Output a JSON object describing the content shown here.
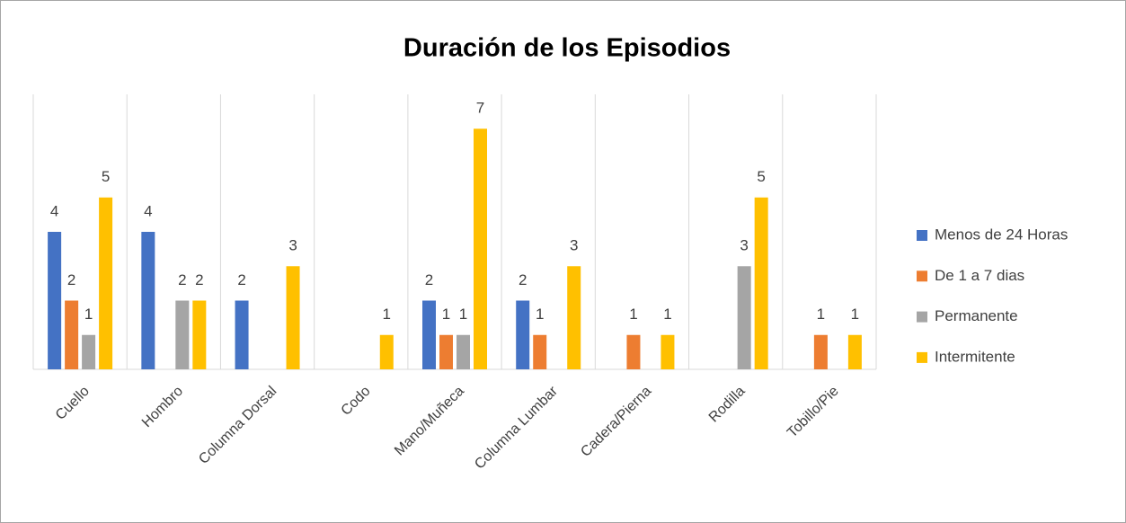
{
  "chart_data": {
    "type": "bar",
    "title": "Duración de los Episodios",
    "categories": [
      "Cuello",
      "Hombro",
      "Columna Dorsal",
      "Codo",
      "Mano/Muñeca",
      "Columna Lumbar",
      "Cadera/Pierna",
      "Rodilla",
      "Tobillo/Pie"
    ],
    "series": [
      {
        "name": "Menos de 24 Horas",
        "color": "#4472c4",
        "values": [
          4,
          4,
          2,
          0,
          2,
          2,
          0,
          0,
          0
        ]
      },
      {
        "name": "De 1 a 7 dias",
        "color": "#ed7d31",
        "values": [
          2,
          0,
          0,
          0,
          1,
          1,
          1,
          0,
          1
        ]
      },
      {
        "name": "Permanente",
        "color": "#a5a5a5",
        "values": [
          1,
          2,
          0,
          0,
          1,
          0,
          0,
          3,
          0
        ]
      },
      {
        "name": "Intermitente",
        "color": "#ffc000",
        "values": [
          5,
          2,
          3,
          1,
          7,
          3,
          1,
          5,
          1
        ]
      }
    ],
    "ylim": [
      0,
      8
    ],
    "grid": "x",
    "legend": "right"
  }
}
